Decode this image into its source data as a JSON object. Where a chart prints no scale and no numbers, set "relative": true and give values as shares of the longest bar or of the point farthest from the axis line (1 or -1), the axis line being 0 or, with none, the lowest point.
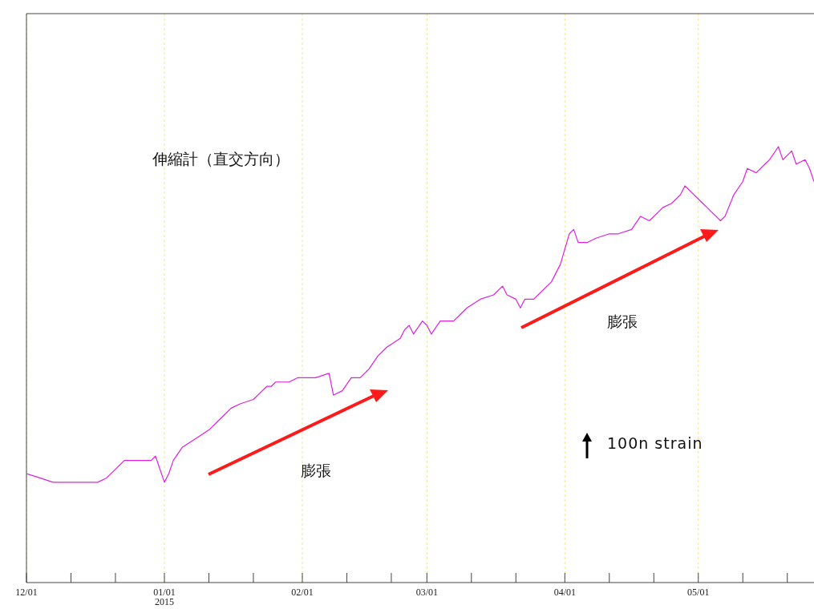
{
  "chart_data": {
    "type": "line",
    "title": "伸縮計（直交方向）",
    "relative": true,
    "color": "#dd22dd",
    "grid": "x",
    "line_style": "solid",
    "marker": "none",
    "xlim": [
      "2014-12-01",
      "2015-05-27"
    ],
    "xticks": [
      {
        "value": "2014-12-01",
        "label": "12/01"
      },
      {
        "value": "2014-12-11",
        "label": null
      },
      {
        "value": "2014-12-21",
        "label": null
      },
      {
        "value": "2015-01-01",
        "label": "01/01\n2015"
      },
      {
        "value": "2015-01-11",
        "label": null
      },
      {
        "value": "2015-01-21",
        "label": null
      },
      {
        "value": "2015-02-01",
        "label": "02/01"
      },
      {
        "value": "2015-02-11",
        "label": null
      },
      {
        "value": "2015-02-21",
        "label": null
      },
      {
        "value": "2015-03-01",
        "label": "03/01"
      },
      {
        "value": "2015-03-11",
        "label": null
      },
      {
        "value": "2015-03-21",
        "label": null
      },
      {
        "value": "2015-04-01",
        "label": "04/01"
      },
      {
        "value": "2015-04-11",
        "label": null
      },
      {
        "value": "2015-04-21",
        "label": null
      },
      {
        "value": "2015-05-01",
        "label": "05/01"
      },
      {
        "value": "2015-05-11",
        "label": null
      },
      {
        "value": "2015-05-21",
        "label": null
      }
    ],
    "x": [
      "2014-12-01",
      "2014-12-04",
      "2014-12-07",
      "2014-12-09",
      "2014-12-13",
      "2014-12-17",
      "2014-12-19",
      "2014-12-21",
      "2014-12-23",
      "2014-12-25",
      "2014-12-28",
      "2014-12-29",
      "2014-12-30",
      "2014-12-31",
      "2015-01-01",
      "2015-01-02",
      "2015-01-03",
      "2015-01-05",
      "2015-01-08",
      "2015-01-11",
      "2015-01-13",
      "2015-01-14",
      "2015-01-16",
      "2015-01-18",
      "2015-01-21",
      "2015-01-23",
      "2015-01-24",
      "2015-01-25",
      "2015-01-26",
      "2015-01-29",
      "2015-01-31",
      "2015-02-04",
      "2015-02-07",
      "2015-02-08",
      "2015-02-10",
      "2015-02-12",
      "2015-02-14",
      "2015-02-16",
      "2015-02-18",
      "2015-02-20",
      "2015-02-23",
      "2015-02-24",
      "2015-02-25",
      "2015-02-26",
      "2015-02-28",
      "2015-03-01",
      "2015-03-02",
      "2015-03-04",
      "2015-03-07",
      "2015-03-09",
      "2015-03-10",
      "2015-03-13",
      "2015-03-16",
      "2015-03-18",
      "2015-03-19",
      "2015-03-21",
      "2015-03-22",
      "2015-03-23",
      "2015-03-25",
      "2015-03-26",
      "2015-03-29",
      "2015-03-31",
      "2015-04-02",
      "2015-04-03",
      "2015-04-04",
      "2015-04-06",
      "2015-04-08",
      "2015-04-11",
      "2015-04-13",
      "2015-04-16",
      "2015-04-18",
      "2015-04-20",
      "2015-04-22",
      "2015-04-23",
      "2015-04-25",
      "2015-04-27",
      "2015-04-28",
      "2015-04-30",
      "2015-05-02",
      "2015-05-03",
      "2015-05-06",
      "2015-05-07",
      "2015-05-09",
      "2015-05-11",
      "2015-05-12",
      "2015-05-14",
      "2015-05-16",
      "2015-05-17",
      "2015-05-19",
      "2015-05-20",
      "2015-05-22",
      "2015-05-23",
      "2015-05-25",
      "2015-05-26",
      "2015-05-27"
    ],
    "values": [
      0.25,
      0.24,
      0.23,
      0.23,
      0.23,
      0.23,
      0.24,
      0.26,
      0.28,
      0.28,
      0.28,
      0.28,
      0.29,
      0.26,
      0.23,
      0.25,
      0.28,
      0.31,
      0.33,
      0.35,
      0.37,
      0.38,
      0.4,
      0.41,
      0.42,
      0.44,
      0.45,
      0.45,
      0.46,
      0.46,
      0.47,
      0.47,
      0.48,
      0.43,
      0.44,
      0.47,
      0.47,
      0.49,
      0.52,
      0.54,
      0.56,
      0.58,
      0.59,
      0.57,
      0.6,
      0.59,
      0.57,
      0.6,
      0.6,
      0.62,
      0.63,
      0.65,
      0.66,
      0.68,
      0.66,
      0.65,
      0.63,
      0.65,
      0.65,
      0.66,
      0.69,
      0.73,
      0.8,
      0.81,
      0.78,
      0.78,
      0.79,
      0.8,
      0.8,
      0.81,
      0.84,
      0.83,
      0.85,
      0.86,
      0.87,
      0.89,
      0.91,
      0.89,
      0.87,
      0.86,
      0.83,
      0.84,
      0.89,
      0.92,
      0.95,
      0.94,
      0.96,
      0.97,
      1,
      0.97,
      0.99,
      0.96,
      0.97,
      0.95,
      0.92
    ],
    "annotations": [
      "膨張",
      "膨張",
      "100n strain"
    ]
  }
}
